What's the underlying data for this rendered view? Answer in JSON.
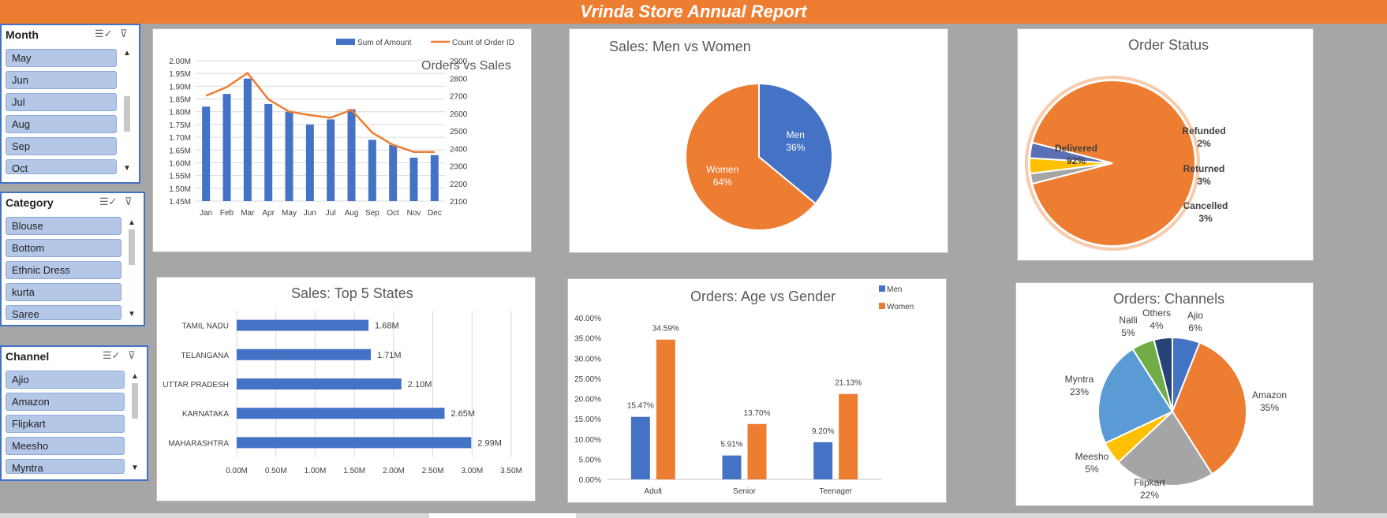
{
  "banner": {
    "title": "Vrinda Store Annual Report"
  },
  "slicers": {
    "month": {
      "title": "Month",
      "items": [
        "May",
        "Jun",
        "Jul",
        "Aug",
        "Sep",
        "Oct"
      ]
    },
    "category": {
      "title": "Category",
      "items": [
        "Blouse",
        "Bottom",
        "Ethnic Dress",
        "kurta",
        "Saree"
      ]
    },
    "channel": {
      "title": "Channel",
      "items": [
        "Ajio",
        "Amazon",
        "Flipkart",
        "Meesho",
        "Myntra"
      ]
    }
  },
  "icons": {
    "multi_select": "multi-select-icon",
    "clear_filter": "clear-filter-icon",
    "scroll_up": "scroll-up-icon",
    "scroll_down": "scroll-down-icon"
  },
  "colors": {
    "accent": "#ed7d31",
    "blue": "#4472c4",
    "gray": "#a5a5a5",
    "gold": "#ffc000",
    "lightblue": "#5b9bd5",
    "green": "#70ad47",
    "navy": "#264478"
  },
  "chart_data": [
    {
      "id": "orders-vs-sales",
      "type": "bar+line",
      "title": "Orders vs Sales",
      "categories": [
        "Jan",
        "Feb",
        "Mar",
        "Apr",
        "May",
        "Jun",
        "Jul",
        "Aug",
        "Sep",
        "Oct",
        "Nov",
        "Dec"
      ],
      "series": [
        {
          "name": "Sum of Amount",
          "type": "bar",
          "axis": "left",
          "values": [
            1.82,
            1.87,
            1.93,
            1.83,
            1.8,
            1.75,
            1.77,
            1.81,
            1.69,
            1.67,
            1.62,
            1.63
          ]
        },
        {
          "name": "Count of Order ID",
          "type": "line",
          "axis": "right",
          "values": [
            2700,
            2750,
            2830,
            2680,
            2610,
            2590,
            2575,
            2620,
            2490,
            2420,
            2380,
            2380
          ]
        }
      ],
      "yticks_left": [
        "2.00M",
        "1.95M",
        "1.90M",
        "1.85M",
        "1.80M",
        "1.75M",
        "1.70M",
        "1.65M",
        "1.60M",
        "1.55M",
        "1.50M",
        "1.45M"
      ],
      "yticks_right": [
        "2900",
        "2800",
        "2700",
        "2600",
        "2500",
        "2400",
        "2300",
        "2200",
        "2100"
      ],
      "ylim_left": [
        1.45,
        2.0
      ],
      "ylim_right": [
        2100,
        2900
      ],
      "legend": "top-right",
      "grid": true
    },
    {
      "id": "sales-men-women",
      "type": "pie",
      "title": "Sales: Men vs Women",
      "slices": [
        {
          "name": "Men",
          "pct": 36,
          "label": "36%",
          "color": "#4472c4"
        },
        {
          "name": "Women",
          "pct": 64,
          "label": "64%",
          "color": "#ed7d31"
        }
      ]
    },
    {
      "id": "order-status",
      "type": "pie",
      "title": "Order Status",
      "slices": [
        {
          "name": "Delivered",
          "pct": 92,
          "label": "92%",
          "color": "#ed7d31"
        },
        {
          "name": "Refunded",
          "pct": 2,
          "label": "2%",
          "color": "#a5a5a5"
        },
        {
          "name": "Returned",
          "pct": 3,
          "label": "3%",
          "color": "#ffc000"
        },
        {
          "name": "Cancelled",
          "pct": 3,
          "label": "3%",
          "color": "#5b6fb4"
        }
      ]
    },
    {
      "id": "top-states",
      "type": "bar",
      "orientation": "horizontal",
      "title": "Sales: Top 5 States",
      "categories": [
        "TAMIL NADU",
        "TELANGANA",
        "UTTAR PRADESH",
        "KARNATAKA",
        "MAHARASHTRA"
      ],
      "values": [
        1.68,
        1.71,
        2.1,
        2.65,
        2.99
      ],
      "labels": [
        "1.68M",
        "1.71M",
        "2.10M",
        "2.65M",
        "2.99M"
      ],
      "xticks": [
        "0.00M",
        "0.50M",
        "1.00M",
        "1.50M",
        "2.00M",
        "2.50M",
        "3.00M",
        "3.50M"
      ],
      "xlim": [
        0,
        3.5
      ],
      "grid": true
    },
    {
      "id": "age-gender",
      "type": "bar",
      "title": "Orders: Age vs Gender",
      "categories": [
        "Adult",
        "Senior",
        "Teenager"
      ],
      "series": [
        {
          "name": "Men",
          "values": [
            15.47,
            5.91,
            9.2
          ],
          "labels": [
            "15.47%",
            "5.91%",
            "9.20%"
          ],
          "color": "#4472c4"
        },
        {
          "name": "Women",
          "values": [
            34.59,
            13.7,
            21.13
          ],
          "labels": [
            "34.59%",
            "13.70%",
            "21.13%"
          ],
          "color": "#ed7d31"
        }
      ],
      "yticks": [
        "40.00%",
        "35.00%",
        "30.00%",
        "25.00%",
        "20.00%",
        "15.00%",
        "10.00%",
        "5.00%",
        "0.00%"
      ],
      "ylim": [
        0,
        40
      ],
      "legend": "top-right"
    },
    {
      "id": "channels",
      "type": "pie",
      "title": "Orders: Channels",
      "slices": [
        {
          "name": "Ajio",
          "pct": 6,
          "label": "6%",
          "color": "#4472c4"
        },
        {
          "name": "Amazon",
          "pct": 35,
          "label": "35%",
          "color": "#ed7d31"
        },
        {
          "name": "Flipkart",
          "pct": 22,
          "label": "22%",
          "color": "#a5a5a5"
        },
        {
          "name": "Meesho",
          "pct": 5,
          "label": "5%",
          "color": "#ffc000"
        },
        {
          "name": "Myntra",
          "pct": 23,
          "label": "23%",
          "color": "#5b9bd5"
        },
        {
          "name": "Nalli",
          "pct": 5,
          "label": "5%",
          "color": "#70ad47"
        },
        {
          "name": "Others",
          "pct": 4,
          "label": "4%",
          "color": "#264478"
        }
      ]
    }
  ]
}
